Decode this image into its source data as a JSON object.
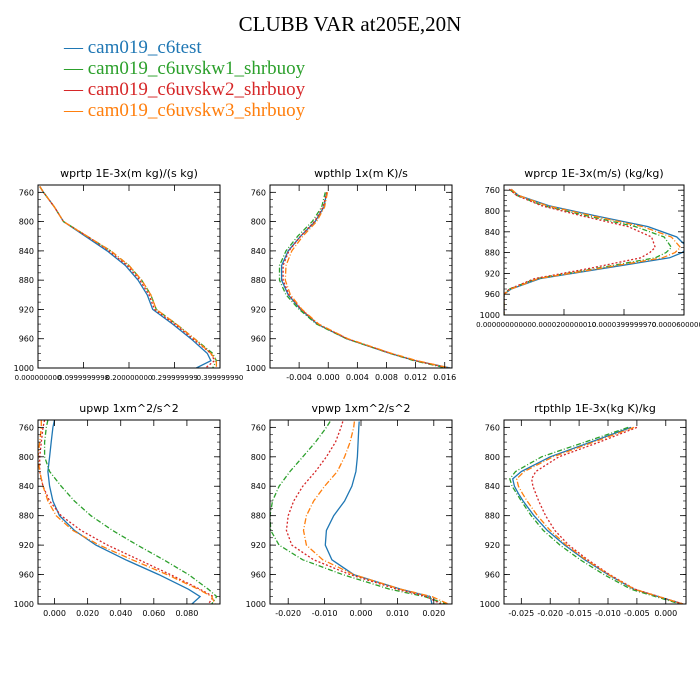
{
  "figure": {
    "title": "CLUBB VAR at205E,20N",
    "series": [
      {
        "name": "cam019_c6test",
        "color": "#1f77b4",
        "dash": ""
      },
      {
        "name": "cam019_c6uvskw1_shrbuoy",
        "color": "#2ca02c",
        "dash": "5,2,1,2"
      },
      {
        "name": "cam019_c6uvskw2_shrbuoy",
        "color": "#d62728",
        "dash": "2,2"
      },
      {
        "name": "cam019_c6uvskw3_shrbuoy",
        "color": "#ff7f0e",
        "dash": "6,2,1,2"
      }
    ]
  },
  "chart_data": [
    {
      "type": "line",
      "title": "wprtp  1E-3x(m kg)/(s kg)",
      "ylim": [
        1000,
        750
      ],
      "yticks": [
        760,
        800,
        840,
        880,
        920,
        960,
        1000
      ],
      "xlim": [
        0,
        1
      ],
      "xticks": [
        {
          "v": 0.0,
          "label": "0.000000000"
        },
        {
          "v": 0.25,
          "label": "0.0999999998"
        },
        {
          "v": 0.5,
          "label": "0.200000000"
        },
        {
          "v": 0.75,
          "label": "0.299999999"
        },
        {
          "v": 1.0,
          "label": "0.399999990"
        }
      ],
      "y": [
        752,
        760,
        780,
        800,
        820,
        840,
        860,
        880,
        900,
        920,
        940,
        960,
        980,
        990,
        1000
      ],
      "series": [
        {
          "x": [
            0.01,
            0.03,
            0.09,
            0.14,
            0.26,
            0.38,
            0.48,
            0.55,
            0.6,
            0.63,
            0.74,
            0.84,
            0.93,
            0.95,
            0.87
          ]
        },
        {
          "x": [
            0.01,
            0.03,
            0.09,
            0.14,
            0.27,
            0.4,
            0.5,
            0.57,
            0.62,
            0.65,
            0.76,
            0.86,
            0.96,
            0.98,
            0.96
          ]
        },
        {
          "x": [
            0.01,
            0.03,
            0.09,
            0.14,
            0.27,
            0.39,
            0.49,
            0.56,
            0.61,
            0.64,
            0.75,
            0.85,
            0.95,
            0.97,
            0.92
          ]
        },
        {
          "x": [
            0.01,
            0.03,
            0.09,
            0.14,
            0.27,
            0.4,
            0.5,
            0.57,
            0.62,
            0.65,
            0.76,
            0.86,
            0.95,
            0.98,
            0.98
          ]
        }
      ]
    },
    {
      "type": "line",
      "title": "wpthlp  1x(m K)/s",
      "ylim": [
        1000,
        750
      ],
      "yticks": [
        760,
        800,
        840,
        880,
        920,
        960,
        1000
      ],
      "xlim": [
        -0.008,
        0.017
      ],
      "xticks": [
        {
          "v": -0.004,
          "label": "-0.004"
        },
        {
          "v": 0.0,
          "label": "0.000"
        },
        {
          "v": 0.004,
          "label": "0.004"
        },
        {
          "v": 0.008,
          "label": "0.008"
        },
        {
          "v": 0.012,
          "label": "0.012"
        },
        {
          "v": 0.016,
          "label": "0.016"
        }
      ],
      "y": [
        760,
        780,
        800,
        820,
        840,
        860,
        880,
        900,
        920,
        940,
        960,
        980,
        990,
        1000
      ],
      "series": [
        {
          "x": [
            -0.0002,
            -0.0006,
            -0.0018,
            -0.0038,
            -0.0055,
            -0.0064,
            -0.0064,
            -0.0055,
            -0.0038,
            -0.0015,
            0.0025,
            0.0085,
            0.012,
            0.0168
          ]
        },
        {
          "x": [
            -0.0004,
            -0.0009,
            -0.0022,
            -0.0042,
            -0.0058,
            -0.0067,
            -0.0067,
            -0.0058,
            -0.004,
            -0.0016,
            0.0025,
            0.0085,
            0.0118,
            0.0162
          ]
        },
        {
          "x": [
            -0.0002,
            -0.0007,
            -0.0019,
            -0.0038,
            -0.0054,
            -0.0062,
            -0.0062,
            -0.0054,
            -0.0037,
            -0.0014,
            0.0026,
            0.0086,
            0.012,
            0.0165
          ]
        },
        {
          "x": [
            -0.0001,
            -0.0005,
            -0.0016,
            -0.0035,
            -0.005,
            -0.0058,
            -0.0059,
            -0.0052,
            -0.0036,
            -0.0013,
            0.0027,
            0.0087,
            0.0122,
            0.0167
          ]
        }
      ]
    },
    {
      "type": "line",
      "title": "wprcp  1E-3x(m/s) (kg/kg)",
      "ylim": [
        1000,
        750
      ],
      "yticks": [
        760,
        800,
        840,
        880,
        920,
        960,
        1000
      ],
      "xlim": [
        0,
        1
      ],
      "xticks": [
        {
          "v": 0.0,
          "label": "0.00000000000"
        },
        {
          "v": 0.3333,
          "label": "0.0000200000010"
        },
        {
          "v": 0.6667,
          "label": "0.0000399999970"
        },
        {
          "v": 1.0,
          "label": "0.0000600000100"
        }
      ],
      "y": [
        758,
        770,
        790,
        810,
        830,
        850,
        870,
        880,
        890,
        910,
        930,
        950,
        960,
        1000
      ],
      "series": [
        {
          "x": [
            0.04,
            0.08,
            0.25,
            0.52,
            0.8,
            0.96,
            1.02,
            0.99,
            0.92,
            0.56,
            0.2,
            0.04,
            0.0,
            0.0
          ]
        },
        {
          "x": [
            0.03,
            0.07,
            0.22,
            0.47,
            0.73,
            0.89,
            0.93,
            0.9,
            0.84,
            0.52,
            0.18,
            0.03,
            0.0,
            0.0
          ]
        },
        {
          "x": [
            0.03,
            0.07,
            0.21,
            0.44,
            0.69,
            0.82,
            0.84,
            0.81,
            0.76,
            0.48,
            0.17,
            0.03,
            0.0,
            0.0
          ]
        },
        {
          "x": [
            0.04,
            0.08,
            0.24,
            0.5,
            0.77,
            0.93,
            0.98,
            0.95,
            0.88,
            0.54,
            0.19,
            0.04,
            0.0,
            0.0
          ]
        }
      ]
    },
    {
      "type": "line",
      "title": "upwp  1xm^2/s^2",
      "ylim": [
        1000,
        750
      ],
      "yticks": [
        760,
        800,
        840,
        880,
        920,
        960,
        1000
      ],
      "xlim": [
        -0.01,
        0.1
      ],
      "xticks": [
        {
          "v": 0.0,
          "label": "0.000"
        },
        {
          "v": 0.02,
          "label": "0.020"
        },
        {
          "v": 0.04,
          "label": "0.040"
        },
        {
          "v": 0.06,
          "label": "0.060"
        },
        {
          "v": 0.08,
          "label": "0.080"
        }
      ],
      "y": [
        750,
        760,
        780,
        800,
        820,
        840,
        860,
        880,
        900,
        920,
        940,
        960,
        980,
        990,
        1000
      ],
      "series": [
        {
          "x": [
            0.0,
            -0.001,
            -0.002,
            -0.003,
            -0.004,
            -0.003,
            -0.001,
            0.003,
            0.012,
            0.025,
            0.043,
            0.063,
            0.081,
            0.088,
            0.083
          ]
        },
        {
          "x": [
            -0.004,
            -0.005,
            -0.006,
            -0.006,
            -0.003,
            0.004,
            0.012,
            0.022,
            0.035,
            0.05,
            0.066,
            0.081,
            0.093,
            0.098,
            0.095
          ]
        },
        {
          "x": [
            -0.006,
            -0.007,
            -0.008,
            -0.009,
            -0.009,
            -0.007,
            -0.003,
            0.004,
            0.016,
            0.032,
            0.051,
            0.07,
            0.088,
            0.096,
            0.093
          ]
        },
        {
          "x": [
            -0.008,
            -0.008,
            -0.009,
            -0.01,
            -0.009,
            -0.007,
            -0.004,
            0.001,
            0.011,
            0.027,
            0.047,
            0.068,
            0.087,
            0.095,
            0.097
          ]
        }
      ]
    },
    {
      "type": "line",
      "title": "vpwp  1xm^2/s^2",
      "ylim": [
        1000,
        750
      ],
      "yticks": [
        760,
        800,
        840,
        880,
        920,
        960,
        1000
      ],
      "xlim": [
        -0.025,
        0.025
      ],
      "xticks": [
        {
          "v": -0.02,
          "label": "-0.020"
        },
        {
          "v": -0.01,
          "label": "-0.010"
        },
        {
          "v": 0.0,
          "label": "0.000"
        },
        {
          "v": 0.01,
          "label": "0.010"
        },
        {
          "v": 0.02,
          "label": "0.020"
        }
      ],
      "y": [
        752,
        760,
        780,
        800,
        820,
        840,
        860,
        880,
        900,
        920,
        940,
        960,
        980,
        990,
        1000
      ],
      "series": [
        {
          "x": [
            -0.0005,
            -0.0006,
            -0.0008,
            -0.001,
            -0.0014,
            -0.0025,
            -0.0045,
            -0.0075,
            -0.0095,
            -0.0098,
            -0.008,
            -0.002,
            0.011,
            0.019,
            0.0195
          ]
        },
        {
          "x": [
            -0.0085,
            -0.0095,
            -0.0125,
            -0.016,
            -0.0195,
            -0.0225,
            -0.0243,
            -0.025,
            -0.0248,
            -0.0225,
            -0.016,
            -0.005,
            0.008,
            0.0175,
            0.0235
          ]
        },
        {
          "x": [
            -0.005,
            -0.0055,
            -0.007,
            -0.0095,
            -0.0125,
            -0.016,
            -0.0185,
            -0.02,
            -0.0205,
            -0.019,
            -0.013,
            -0.003,
            0.01,
            0.018,
            0.022
          ]
        },
        {
          "x": [
            -0.0018,
            -0.002,
            -0.003,
            -0.0045,
            -0.0065,
            -0.01,
            -0.013,
            -0.015,
            -0.0158,
            -0.015,
            -0.0105,
            -0.002,
            0.011,
            0.0195,
            0.024
          ]
        }
      ]
    },
    {
      "type": "line",
      "title": "rtpthlp  1E-3x(kg K)/kg",
      "ylim": [
        1000,
        750
      ],
      "yticks": [
        760,
        800,
        840,
        880,
        920,
        960,
        1000
      ],
      "xlim": [
        -0.028,
        0.0035
      ],
      "xticks": [
        {
          "v": -0.025,
          "label": "-0.025"
        },
        {
          "v": -0.02,
          "label": "-0.020"
        },
        {
          "v": -0.015,
          "label": "-0.015"
        },
        {
          "v": -0.01,
          "label": "-0.010"
        },
        {
          "v": -0.005,
          "label": "-0.005"
        },
        {
          "v": 0.0,
          "label": "0.000"
        }
      ],
      "y": [
        760,
        780,
        800,
        820,
        830,
        840,
        850,
        860,
        880,
        900,
        920,
        940,
        960,
        980,
        1000
      ],
      "series": [
        {
          "x": [
            -0.006,
            -0.013,
            -0.02,
            -0.025,
            -0.0265,
            -0.0262,
            -0.0255,
            -0.0247,
            -0.0228,
            -0.0205,
            -0.0175,
            -0.014,
            -0.01,
            -0.0055,
            0.003
          ]
        },
        {
          "x": [
            -0.0065,
            -0.014,
            -0.0215,
            -0.026,
            -0.027,
            -0.0266,
            -0.0258,
            -0.025,
            -0.0233,
            -0.0212,
            -0.0183,
            -0.0148,
            -0.0107,
            -0.006,
            0.0025
          ]
        },
        {
          "x": [
            -0.005,
            -0.0115,
            -0.0185,
            -0.0225,
            -0.0232,
            -0.023,
            -0.0225,
            -0.022,
            -0.0208,
            -0.0192,
            -0.0168,
            -0.0135,
            -0.0097,
            -0.0053,
            0.003
          ]
        },
        {
          "x": [
            -0.0055,
            -0.0125,
            -0.0195,
            -0.0245,
            -0.0258,
            -0.0255,
            -0.0248,
            -0.024,
            -0.0222,
            -0.02,
            -0.0172,
            -0.0138,
            -0.0099,
            -0.0054,
            0.003
          ]
        }
      ]
    }
  ]
}
